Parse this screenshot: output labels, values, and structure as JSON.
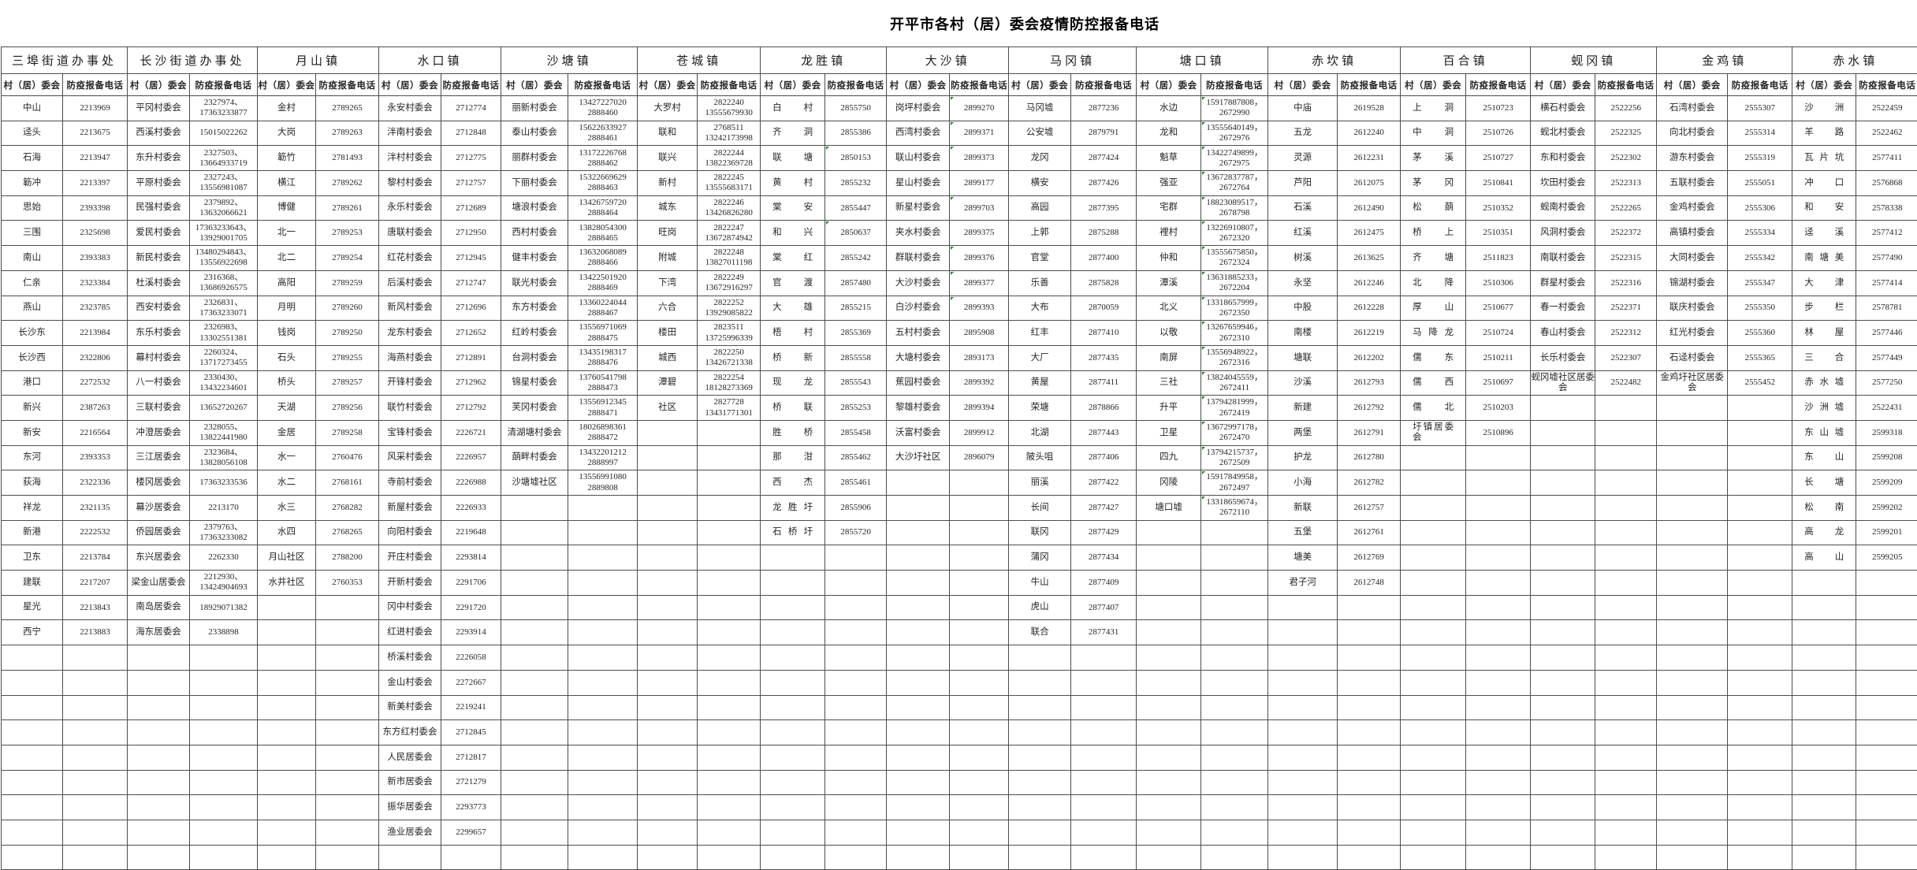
{
  "title": "开平市各村（居）委会疫情防控报备电话",
  "column_headers": {
    "village": "村（居）委会",
    "phone": "防疫报备电话"
  },
  "towns": [
    {
      "name": "三埠街道办事处",
      "rows": [
        [
          "中山",
          "2213969"
        ],
        [
          "迳头",
          "2213675"
        ],
        [
          "石海",
          "2213947"
        ],
        [
          "簕冲",
          "2213397"
        ],
        [
          "思始",
          "2393398"
        ],
        [
          "三围",
          "2325698"
        ],
        [
          "南山",
          "2393383"
        ],
        [
          "仁亲",
          "2323384"
        ],
        [
          "燕山",
          "2323785"
        ],
        [
          "长沙东",
          "2213984"
        ],
        [
          "长沙西",
          "2322806"
        ],
        [
          "港口",
          "2272532"
        ],
        [
          "新兴",
          "2387263"
        ],
        [
          "新安",
          "2216564"
        ],
        [
          "东河",
          "2393353"
        ],
        [
          "荻海",
          "2322336"
        ],
        [
          "祥龙",
          "2321135"
        ],
        [
          "新港",
          "2222532"
        ],
        [
          "卫东",
          "2213784"
        ],
        [
          "建联",
          "2217207"
        ],
        [
          "星光",
          "2213843"
        ],
        [
          "西宁",
          "2213883"
        ]
      ]
    },
    {
      "name": "长沙街道办事处",
      "rows": [
        [
          "平冈村委会",
          "2327974、\n17363233877"
        ],
        [
          "西溪村委会",
          "15015022262"
        ],
        [
          "东升村委会",
          "2327503、\n13664933719"
        ],
        [
          "平原村委会",
          "2327243、\n13556981087"
        ],
        [
          "民强村委会",
          "2379892、\n13632066621"
        ],
        [
          "爱民村委会",
          "17363233643、\n13929001705"
        ],
        [
          "新民村委会",
          "13480294843、\n13556922698"
        ],
        [
          "杜溪村委会",
          "2316368、\n13686926575"
        ],
        [
          "西安村委会",
          "2326831、\n17363233071"
        ],
        [
          "东乐村委会",
          "2326983、\n13302551381"
        ],
        [
          "幕村村委会",
          "2260324、\n13717273455"
        ],
        [
          "八一村委会",
          "2330430、\n13432234601"
        ],
        [
          "三联村委会",
          "13652720267"
        ],
        [
          "冲澄居委会",
          "2328055、\n13822441980"
        ],
        [
          "三江居委会",
          "2323684、\n13828056108"
        ],
        [
          "楼冈居委会",
          "17363233536"
        ],
        [
          "幕沙居委会",
          "2213170"
        ],
        [
          "侨园居委会",
          "2379763、\n17363233082"
        ],
        [
          "东兴居委会",
          "2262330"
        ],
        [
          "梁金山居委会",
          "2212930、\n13424904693"
        ],
        [
          "南岛居委会",
          "18929071382"
        ],
        [
          "海东居委会",
          "2338898"
        ]
      ]
    },
    {
      "name": "月山镇",
      "rows": [
        [
          "金村",
          "2789265"
        ],
        [
          "大岗",
          "2789263"
        ],
        [
          "簕竹",
          "2781493"
        ],
        [
          "横江",
          "2789262"
        ],
        [
          "博健",
          "2789261"
        ],
        [
          "北一",
          "2789253"
        ],
        [
          "北二",
          "2789254"
        ],
        [
          "高阳",
          "2789259"
        ],
        [
          "月明",
          "2789260"
        ],
        [
          "钱岗",
          "2789250"
        ],
        [
          "石头",
          "2789255"
        ],
        [
          "桥头",
          "2789257"
        ],
        [
          "天湖",
          "2789256"
        ],
        [
          "金居",
          "2789258"
        ],
        [
          "水一",
          "2760476"
        ],
        [
          "水二",
          "2768161"
        ],
        [
          "水三",
          "2768282"
        ],
        [
          "水四",
          "2768265"
        ],
        [
          "月山社区",
          "2788200"
        ],
        [
          "水井社区",
          "2760353"
        ]
      ]
    },
    {
      "name": "水口镇",
      "rows": [
        [
          "永安村委会",
          "2712774"
        ],
        [
          "泮南村委会",
          "2712848"
        ],
        [
          "泮村村委会",
          "2712775"
        ],
        [
          "黎村村委会",
          "2712757"
        ],
        [
          "永乐村委会",
          "2712689"
        ],
        [
          "唐联村委会",
          "2712950"
        ],
        [
          "红花村委会",
          "2712945"
        ],
        [
          "后溪村委会",
          "2712747"
        ],
        [
          "新风村委会",
          "2712696"
        ],
        [
          "龙东村委会",
          "2712652"
        ],
        [
          "海燕村委会",
          "2712891"
        ],
        [
          "开锋村委会",
          "2712962"
        ],
        [
          "联竹村委会",
          "2712792"
        ],
        [
          "宝锋村委会",
          "2226721"
        ],
        [
          "风采村委会",
          "2226957"
        ],
        [
          "寺前村委会",
          "2226988"
        ],
        [
          "新屋村委会",
          "2226933"
        ],
        [
          "向阳村委会",
          "2219648"
        ],
        [
          "开庄村委会",
          "2293814"
        ],
        [
          "开新村委会",
          "2291706"
        ],
        [
          "冈中村委会",
          "2291720"
        ],
        [
          "红进村委会",
          "2293914"
        ],
        [
          "桥溪村委会",
          "2226058"
        ],
        [
          "金山村委会",
          "2272667"
        ],
        [
          "新美村委会",
          "2219241"
        ],
        [
          "东方红村委会",
          "2712845"
        ],
        [
          "人民居委会",
          "2712817"
        ],
        [
          "新市居委会",
          "2721279"
        ],
        [
          "振华居委会",
          "2293773"
        ],
        [
          "渔业居委会",
          "2299657"
        ]
      ]
    },
    {
      "name": "沙塘镇",
      "rows": [
        [
          "丽新村委会",
          "13427227020\n2888460"
        ],
        [
          "泰山村委会",
          "15622633927\n2888461"
        ],
        [
          "丽群村委会",
          "13172226768\n2888462"
        ],
        [
          "下丽村委会",
          "15322669629\n2888463"
        ],
        [
          "塘浪村委会",
          "13426759720\n2888464"
        ],
        [
          "西村村委会",
          "13828054300\n2888465"
        ],
        [
          "健丰村委会",
          "13632068089\n2888466"
        ],
        [
          "联光村委会",
          "13422501920\n2888469"
        ],
        [
          "东方村委会",
          "13360224044\n2888467"
        ],
        [
          "红岭村委会",
          "13556971069\n2888475"
        ],
        [
          "台洞村委会",
          "13435198317\n2888476"
        ],
        [
          "锦星村委会",
          "13760541798\n2888473"
        ],
        [
          "芙冈村委会",
          "13556912345\n2888471"
        ],
        [
          "清湖塘村委会",
          "18026898361\n2888472"
        ],
        [
          "蓢畔村委会",
          "13432201212\n2888997"
        ],
        [
          "沙塘墟社区",
          "13556991080\n2889808"
        ]
      ]
    },
    {
      "name": "苍城镇",
      "rows": [
        [
          "大罗村",
          "2822240\n13555679930"
        ],
        [
          "联和",
          "2768511\n13242173998"
        ],
        [
          "联兴",
          "2822244\n13822369728"
        ],
        [
          "新村",
          "2822245\n13555683171"
        ],
        [
          "城东",
          "2822246\n13426826280"
        ],
        [
          "旺岗",
          "2822247\n13672874942"
        ],
        [
          "附城",
          "2822248\n13827011198"
        ],
        [
          "下湾",
          "2822249\n13672916297"
        ],
        [
          "六合",
          "2822252\n13929085822"
        ],
        [
          "楼田",
          "2823511\n13725996339"
        ],
        [
          "城西",
          "2822250\n13426721338"
        ],
        [
          "潭碧",
          "2822254\n18128273369"
        ],
        [
          "社区",
          "2827728\n13431771301"
        ]
      ]
    },
    {
      "name": "龙胜镇",
      "spread_names": true,
      "marker_rows": [
        2,
        5
      ],
      "rows": [
        [
          "白村",
          "2855750"
        ],
        [
          "齐洞",
          "2855386"
        ],
        [
          "联塘",
          "2850153"
        ],
        [
          "黄村",
          "2855232"
        ],
        [
          "棠安",
          "2855447"
        ],
        [
          "和兴",
          "2850637"
        ],
        [
          "棠红",
          "2855242"
        ],
        [
          "官渡",
          "2857480"
        ],
        [
          "大雄",
          "2855215"
        ],
        [
          "梧村",
          "2855369"
        ],
        [
          "桥新",
          "2855558"
        ],
        [
          "现龙",
          "2855543"
        ],
        [
          "桥联",
          "2855253"
        ],
        [
          "胜桥",
          "2855458"
        ],
        [
          "那泔",
          "2855462"
        ],
        [
          "西杰",
          "2855461"
        ],
        [
          "龙胜圩",
          "2855906"
        ],
        [
          "石桥圩",
          "2855720"
        ]
      ]
    },
    {
      "name": "大沙镇",
      "marker_rows": [
        0,
        1,
        2,
        4,
        6,
        7,
        8
      ],
      "rows": [
        [
          "岗坪村委会",
          "2899270"
        ],
        [
          "西湾村委会",
          "2899371"
        ],
        [
          "联山村委会",
          "2899373"
        ],
        [
          "星山村委会",
          "2899177"
        ],
        [
          "新星村委会",
          "2899703"
        ],
        [
          "夹水村委会",
          "2899375"
        ],
        [
          "群联村委会",
          "2899376"
        ],
        [
          "大沙村委会",
          "2899377"
        ],
        [
          "白沙村委会",
          "2899393"
        ],
        [
          "五村村委会",
          "2895908"
        ],
        [
          "大塘村委会",
          "2893173"
        ],
        [
          "蕉园村委会",
          "2899392"
        ],
        [
          "黎雄村委会",
          "2899394"
        ],
        [
          "沃富村委会",
          "2899912"
        ],
        [
          "大沙圩社区",
          "2896079"
        ]
      ]
    },
    {
      "name": "马冈镇",
      "rows": [
        [
          "马冈墟",
          "2877236"
        ],
        [
          "公安墟",
          "2879791"
        ],
        [
          "龙冈",
          "2877424"
        ],
        [
          "横安",
          "2877426"
        ],
        [
          "高园",
          "2877395"
        ],
        [
          "上郭",
          "2875288"
        ],
        [
          "官堂",
          "2877400"
        ],
        [
          "乐善",
          "2875828"
        ],
        [
          "大布",
          "2870059"
        ],
        [
          "红丰",
          "2877410"
        ],
        [
          "大厂",
          "2877435"
        ],
        [
          "黄屋",
          "2877411"
        ],
        [
          "荣塘",
          "2878866"
        ],
        [
          "北湖",
          "2877443"
        ],
        [
          "陂头咀",
          "2877406"
        ],
        [
          "丽溪",
          "2877422"
        ],
        [
          "长间",
          "2877427"
        ],
        [
          "联冈",
          "2877429"
        ],
        [
          "蒲冈",
          "2877434"
        ],
        [
          "牛山",
          "2877409"
        ],
        [
          "虎山",
          "2877407"
        ],
        [
          "联合",
          "2877431"
        ]
      ]
    },
    {
      "name": "塘口镇",
      "marker_rows": [
        0,
        1,
        2,
        3,
        4,
        5,
        6,
        7,
        8,
        9,
        10,
        11,
        12,
        13,
        14,
        15,
        16
      ],
      "rows": [
        [
          "水边",
          "15917887808，\n2672990"
        ],
        [
          "龙和",
          "13555640149，\n2672976"
        ],
        [
          "魁草",
          "13422749899，\n2672975"
        ],
        [
          "强亚",
          "13672837787，\n2672764"
        ],
        [
          "宅群",
          "18823089517，\n2678798"
        ],
        [
          "裡村",
          "13226910807，\n2672320"
        ],
        [
          "仲和",
          "13555675850，\n2672324"
        ],
        [
          "潭溪",
          "13631885233，\n2672204"
        ],
        [
          "北义",
          "13318657999，\n2672350"
        ],
        [
          "以敬",
          "13267659946，\n2672310"
        ],
        [
          "南屏",
          "13556948922，\n2672316"
        ],
        [
          "三社",
          "13824045559，\n2672411"
        ],
        [
          "升平",
          "13794281999，\n2672419"
        ],
        [
          "卫星",
          "13672997178，\n2672470"
        ],
        [
          "四九",
          "13794215737，\n2672509"
        ],
        [
          "冈陵",
          "15917849958，\n2672497"
        ],
        [
          "塘口墟",
          "13318659674，\n2672110"
        ]
      ]
    },
    {
      "name": "赤坎镇",
      "rows": [
        [
          "中庙",
          "2619528"
        ],
        [
          "五龙",
          "2612240"
        ],
        [
          "灵源",
          "2612231"
        ],
        [
          "芦阳",
          "2612075"
        ],
        [
          "石溪",
          "2612490"
        ],
        [
          "红溪",
          "2612475"
        ],
        [
          "树溪",
          "2613625"
        ],
        [
          "永坚",
          "2612246"
        ],
        [
          "中股",
          "2612228"
        ],
        [
          "南楼",
          "2612219"
        ],
        [
          "塘联",
          "2612202"
        ],
        [
          "沙溪",
          "2612793"
        ],
        [
          "新建",
          "2612792"
        ],
        [
          "两堡",
          "2612791"
        ],
        [
          "护龙",
          "2612780"
        ],
        [
          "小海",
          "2612782"
        ],
        [
          "新联",
          "2612757"
        ],
        [
          "五堡",
          "2612761"
        ],
        [
          "塘美",
          "2612769"
        ],
        [
          "君子河",
          "2612748"
        ]
      ]
    },
    {
      "name": "百合镇",
      "spread_names": true,
      "rows": [
        [
          "上洞",
          "2510723"
        ],
        [
          "中洞",
          "2510726"
        ],
        [
          "茅溪",
          "2510727"
        ],
        [
          "茅冈",
          "2510841"
        ],
        [
          "松蓢",
          "2510352"
        ],
        [
          "桥上",
          "2510351"
        ],
        [
          "齐塘",
          "2511823"
        ],
        [
          "北降",
          "2510306"
        ],
        [
          "厚山",
          "2510677"
        ],
        [
          "马降龙",
          "2510724"
        ],
        [
          "儒东",
          "2510211"
        ],
        [
          "儒西",
          "2510697"
        ],
        [
          "儒北",
          "2510203"
        ],
        [
          "圩镇居委会",
          "2510896"
        ]
      ]
    },
    {
      "name": "蚬冈镇",
      "rows": [
        [
          "横石村委会",
          "2522256"
        ],
        [
          "蚬北村委会",
          "2522325"
        ],
        [
          "东和村委会",
          "2522302"
        ],
        [
          "坎田村委会",
          "2522313"
        ],
        [
          "蚬南村委会",
          "2522265"
        ],
        [
          "风洞村委会",
          "2522372"
        ],
        [
          "南联村委会",
          "2522315"
        ],
        [
          "群星村委会",
          "2522316"
        ],
        [
          "春一村委会",
          "2522371"
        ],
        [
          "春山村委会",
          "2522312"
        ],
        [
          "长乐村委会",
          "2522307"
        ],
        [
          "蚬冈墟社区居委会",
          "2522482"
        ]
      ]
    },
    {
      "name": "金鸡镇",
      "rows": [
        [
          "石湾村委会",
          "2555307"
        ],
        [
          "向北村委会",
          "2555314"
        ],
        [
          "游东村委会",
          "2555319"
        ],
        [
          "五联村委会",
          "2555051"
        ],
        [
          "金鸡村委会",
          "2555306"
        ],
        [
          "高镇村委会",
          "2555334"
        ],
        [
          "大同村委会",
          "2555342"
        ],
        [
          "锦湖村委会",
          "2555347"
        ],
        [
          "联庆村委会",
          "2555350"
        ],
        [
          "红光村委会",
          "2555360"
        ],
        [
          "石迳村委会",
          "2555365"
        ],
        [
          "金鸡圩社区居委会",
          "2555452"
        ]
      ]
    },
    {
      "name": "赤水镇",
      "spread_names": true,
      "rows": [
        [
          "沙洲",
          "2522459"
        ],
        [
          "羊路",
          "2522462"
        ],
        [
          "瓦片坑",
          "2577411"
        ],
        [
          "冲口",
          "2576868"
        ],
        [
          "和安",
          "2578338"
        ],
        [
          "迳溪",
          "2577412"
        ],
        [
          "南塘美",
          "2577490"
        ],
        [
          "大津",
          "2577414"
        ],
        [
          "步栏",
          "2578781"
        ],
        [
          "林屋",
          "2577446"
        ],
        [
          "三合",
          "2577449"
        ],
        [
          "赤水墟",
          "2577250"
        ],
        [
          "沙洲墟",
          "2522431"
        ],
        [
          "东山墟",
          "2599318"
        ],
        [
          "东山",
          "2599208"
        ],
        [
          "长塘",
          "2599209"
        ],
        [
          "松南",
          "2599202"
        ],
        [
          "高龙",
          "2599201"
        ],
        [
          "高山",
          "2599205"
        ]
      ]
    }
  ]
}
